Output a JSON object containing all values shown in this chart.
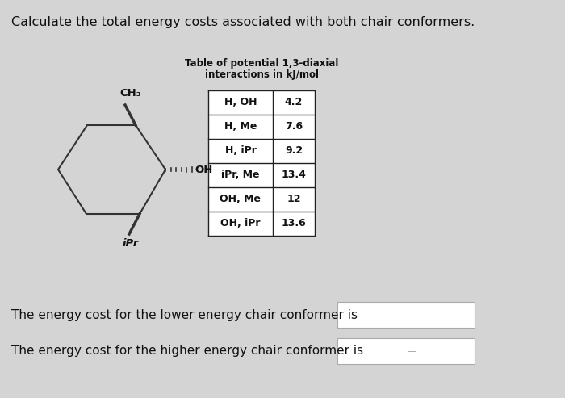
{
  "title": "Calculate the total energy costs associated with both chair conformers.",
  "table_title_line1": "Table of potential 1,3-diaxial",
  "table_title_line2": "interactions in kJ/mol",
  "table_rows": [
    [
      "H, OH",
      "4.2"
    ],
    [
      "H, Me",
      "7.6"
    ],
    [
      "H, iPr",
      "9.2"
    ],
    [
      "iPr, Me",
      "13.4"
    ],
    [
      "OH, Me",
      "12"
    ],
    [
      "OH, iPr",
      "13.6"
    ]
  ],
  "bottom_text1": "The energy cost for the lower energy chair conformer is",
  "bottom_text2": "The energy cost for the higher energy chair conformer is",
  "bg_color": "#d4d4d4",
  "table_border_color": "#222222",
  "text_color": "#111111",
  "title_fontsize": 11.5,
  "table_title_fontsize": 8.5,
  "table_fontsize": 9,
  "body_fontsize": 11,
  "molecule_color": "#333333"
}
